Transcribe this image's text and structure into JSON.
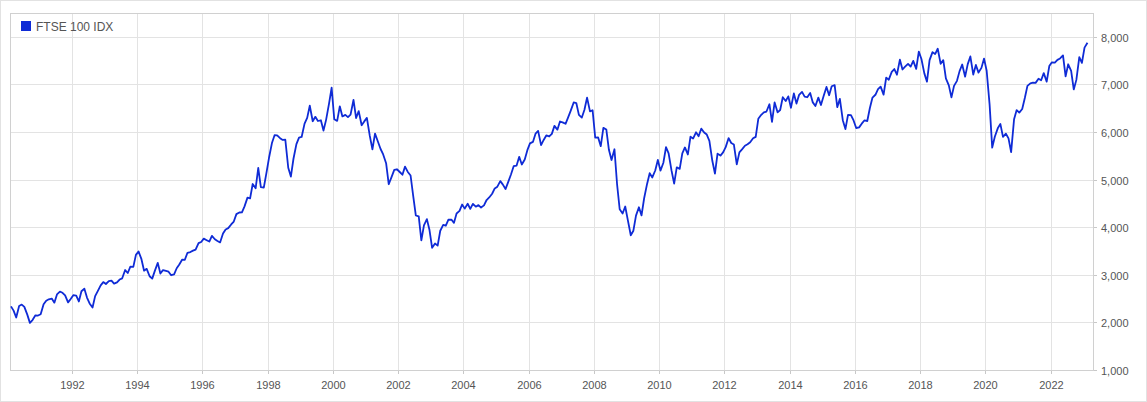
{
  "chart_data": {
    "type": "line",
    "x": [
      1990.13,
      1990.21,
      1990.29,
      1990.38,
      1990.46,
      1990.54,
      1990.63,
      1990.71,
      1990.79,
      1990.88,
      1990.96,
      1991.04,
      1991.13,
      1991.21,
      1991.29,
      1991.38,
      1991.46,
      1991.54,
      1991.63,
      1991.71,
      1991.79,
      1991.88,
      1991.96,
      1992.04,
      1992.13,
      1992.21,
      1992.29,
      1992.38,
      1992.46,
      1992.54,
      1992.63,
      1992.71,
      1992.79,
      1992.88,
      1992.96,
      1993.04,
      1993.13,
      1993.21,
      1993.29,
      1993.38,
      1993.46,
      1993.54,
      1993.63,
      1993.71,
      1993.79,
      1993.88,
      1993.96,
      1994.04,
      1994.13,
      1994.21,
      1994.29,
      1994.38,
      1994.46,
      1994.54,
      1994.63,
      1994.71,
      1994.79,
      1994.88,
      1994.96,
      1995.04,
      1995.13,
      1995.21,
      1995.29,
      1995.38,
      1995.46,
      1995.54,
      1995.63,
      1995.71,
      1995.79,
      1995.88,
      1995.96,
      1996.04,
      1996.13,
      1996.21,
      1996.29,
      1996.38,
      1996.46,
      1996.54,
      1996.63,
      1996.71,
      1996.79,
      1996.88,
      1996.96,
      1997.04,
      1997.13,
      1997.21,
      1997.29,
      1997.38,
      1997.46,
      1997.54,
      1997.63,
      1997.71,
      1997.79,
      1997.88,
      1997.96,
      1998.04,
      1998.13,
      1998.21,
      1998.29,
      1998.38,
      1998.46,
      1998.54,
      1998.63,
      1998.71,
      1998.79,
      1998.88,
      1998.96,
      1999.04,
      1999.13,
      1999.21,
      1999.29,
      1999.38,
      1999.46,
      1999.54,
      1999.63,
      1999.71,
      1999.79,
      1999.88,
      1999.96,
      2000.04,
      2000.13,
      2000.21,
      2000.29,
      2000.38,
      2000.46,
      2000.54,
      2000.63,
      2000.71,
      2000.79,
      2000.88,
      2000.96,
      2001.04,
      2001.13,
      2001.21,
      2001.29,
      2001.38,
      2001.46,
      2001.54,
      2001.63,
      2001.71,
      2001.79,
      2001.88,
      2001.96,
      2002.04,
      2002.13,
      2002.21,
      2002.29,
      2002.38,
      2002.46,
      2002.54,
      2002.63,
      2002.71,
      2002.79,
      2002.88,
      2002.96,
      2003.04,
      2003.13,
      2003.21,
      2003.29,
      2003.38,
      2003.46,
      2003.54,
      2003.63,
      2003.71,
      2003.79,
      2003.88,
      2003.96,
      2004.04,
      2004.13,
      2004.21,
      2004.29,
      2004.38,
      2004.46,
      2004.54,
      2004.63,
      2004.71,
      2004.79,
      2004.88,
      2004.96,
      2005.04,
      2005.13,
      2005.21,
      2005.29,
      2005.38,
      2005.46,
      2005.54,
      2005.63,
      2005.71,
      2005.79,
      2005.88,
      2005.96,
      2006.04,
      2006.13,
      2006.21,
      2006.29,
      2006.38,
      2006.46,
      2006.54,
      2006.63,
      2006.71,
      2006.79,
      2006.88,
      2006.96,
      2007.04,
      2007.13,
      2007.21,
      2007.29,
      2007.38,
      2007.46,
      2007.54,
      2007.63,
      2007.71,
      2007.79,
      2007.88,
      2007.96,
      2008.04,
      2008.13,
      2008.21,
      2008.29,
      2008.38,
      2008.46,
      2008.54,
      2008.63,
      2008.71,
      2008.79,
      2008.88,
      2008.96,
      2009.04,
      2009.13,
      2009.21,
      2009.29,
      2009.38,
      2009.46,
      2009.54,
      2009.63,
      2009.71,
      2009.79,
      2009.88,
      2009.96,
      2010.04,
      2010.13,
      2010.21,
      2010.29,
      2010.38,
      2010.46,
      2010.54,
      2010.63,
      2010.71,
      2010.79,
      2010.88,
      2010.96,
      2011.04,
      2011.13,
      2011.21,
      2011.29,
      2011.38,
      2011.46,
      2011.54,
      2011.63,
      2011.71,
      2011.79,
      2011.88,
      2011.96,
      2012.04,
      2012.13,
      2012.21,
      2012.29,
      2012.38,
      2012.46,
      2012.54,
      2012.63,
      2012.71,
      2012.79,
      2012.88,
      2012.96,
      2013.04,
      2013.13,
      2013.21,
      2013.29,
      2013.38,
      2013.46,
      2013.54,
      2013.63,
      2013.71,
      2013.79,
      2013.88,
      2013.96,
      2014.04,
      2014.13,
      2014.21,
      2014.29,
      2014.38,
      2014.46,
      2014.54,
      2014.63,
      2014.71,
      2014.79,
      2014.88,
      2014.96,
      2015.04,
      2015.13,
      2015.21,
      2015.29,
      2015.38,
      2015.46,
      2015.54,
      2015.63,
      2015.71,
      2015.79,
      2015.88,
      2015.96,
      2016.04,
      2016.13,
      2016.21,
      2016.29,
      2016.38,
      2016.46,
      2016.54,
      2016.63,
      2016.71,
      2016.79,
      2016.88,
      2016.96,
      2017.04,
      2017.13,
      2017.21,
      2017.29,
      2017.38,
      2017.46,
      2017.54,
      2017.63,
      2017.71,
      2017.79,
      2017.88,
      2017.96,
      2018.04,
      2018.13,
      2018.21,
      2018.29,
      2018.38,
      2018.46,
      2018.54,
      2018.63,
      2018.71,
      2018.79,
      2018.88,
      2018.96,
      2019.04,
      2019.13,
      2019.21,
      2019.29,
      2019.38,
      2019.46,
      2019.54,
      2019.63,
      2019.71,
      2019.79,
      2019.88,
      2019.96,
      2020.04,
      2020.13,
      2020.21,
      2020.29,
      2020.38,
      2020.46,
      2020.54,
      2020.63,
      2020.71,
      2020.79,
      2020.88,
      2020.96,
      2021.04,
      2021.13,
      2021.21,
      2021.29,
      2021.38,
      2021.46,
      2021.54,
      2021.63,
      2021.71,
      2021.79,
      2021.88,
      2021.96,
      2022.04,
      2022.13,
      2022.21,
      2022.29,
      2022.38,
      2022.46,
      2022.54,
      2022.63,
      2022.71,
      2022.79,
      2022.88,
      2022.96,
      2023.04,
      2023.13
    ],
    "series": [
      {
        "name": "FTSE 100 IDX",
        "color": "#0f2bd6",
        "values": [
          2337,
          2247,
          2103,
          2345,
          2375,
          2326,
          2163,
          1990,
          2050,
          2149,
          2144,
          2170,
          2380,
          2456,
          2486,
          2500,
          2415,
          2588,
          2645,
          2622,
          2566,
          2420,
          2493,
          2571,
          2562,
          2440,
          2654,
          2708,
          2521,
          2399,
          2313,
          2553,
          2658,
          2778,
          2847,
          2807,
          2868,
          2878,
          2813,
          2840,
          2900,
          2926,
          3100,
          3038,
          3171,
          3166,
          3418,
          3491,
          3328,
          3086,
          3125,
          2970,
          2919,
          3082,
          3251,
          3027,
          3097,
          3081,
          3066,
          2991,
          3009,
          3138,
          3216,
          3320,
          3315,
          3463,
          3478,
          3508,
          3530,
          3664,
          3689,
          3760,
          3727,
          3699,
          3818,
          3747,
          3711,
          3680,
          3867,
          3953,
          3980,
          4058,
          4119,
          4275,
          4309,
          4313,
          4437,
          4621,
          4604,
          4907,
          4817,
          5244,
          4842,
          4831,
          5136,
          5458,
          5767,
          5932,
          5928,
          5870,
          5833,
          5837,
          5249,
          5064,
          5438,
          5744,
          5883,
          5896,
          6175,
          6296,
          6552,
          6226,
          6319,
          6231,
          6246,
          6030,
          6255,
          6597,
          6930,
          6269,
          6233,
          6540,
          6327,
          6360,
          6313,
          6365,
          6673,
          6294,
          6438,
          6142,
          6223,
          6297,
          5918,
          5634,
          5967,
          5796,
          5643,
          5529,
          5345,
          4903,
          5040,
          5204,
          5217,
          5165,
          5102,
          5272,
          5166,
          5086,
          4656,
          4246,
          4227,
          3722,
          4039,
          4170,
          3940,
          3567,
          3656,
          3613,
          3926,
          4048,
          4031,
          4157,
          4161,
          4091,
          4288,
          4342,
          4477,
          4390,
          4492,
          4386,
          4489,
          4431,
          4464,
          4413,
          4459,
          4571,
          4625,
          4703,
          4814,
          4852,
          4968,
          4894,
          4801,
          4964,
          5113,
          5282,
          5296,
          5478,
          5317,
          5423,
          5619,
          5760,
          5792,
          5965,
          6023,
          5724,
          5833,
          5928,
          5906,
          5961,
          6129,
          6049,
          6221,
          6203,
          6172,
          6308,
          6449,
          6621,
          6608,
          6360,
          6303,
          6467,
          6722,
          6433,
          6457,
          5880,
          5884,
          5702,
          6087,
          6053,
          5626,
          5412,
          5637,
          4902,
          4377,
          4288,
          4434,
          4150,
          3830,
          3926,
          4244,
          4418,
          4249,
          4608,
          4909,
          5134,
          5045,
          5191,
          5413,
          5189,
          5355,
          5680,
          5553,
          5188,
          4917,
          5258,
          5225,
          5549,
          5675,
          5528,
          5900,
          5863,
          5994,
          5909,
          6070,
          5990,
          5946,
          5815,
          5395,
          5128,
          5544,
          5505,
          5572,
          5682,
          5872,
          5768,
          5738,
          5321,
          5571,
          5635,
          5711,
          5742,
          5783,
          5867,
          5898,
          6277,
          6361,
          6412,
          6430,
          6583,
          6215,
          6621,
          6413,
          6462,
          6731,
          6651,
          6749,
          6510,
          6810,
          6598,
          6780,
          6844,
          6744,
          6730,
          6820,
          6622,
          6546,
          6723,
          6566,
          6749,
          6947,
          6773,
          6961,
          6984,
          6521,
          6696,
          6248,
          6062,
          6361,
          6356,
          6242,
          6084,
          6097,
          6175,
          6242,
          6231,
          6504,
          6724,
          6782,
          6899,
          6954,
          6784,
          7143,
          7099,
          7263,
          7323,
          7204,
          7520,
          7313,
          7372,
          7431,
          7373,
          7493,
          7327,
          7688,
          7534,
          7232,
          7057,
          7509,
          7678,
          7637,
          7749,
          7432,
          7510,
          7128,
          6980,
          6728,
          6969,
          7075,
          7279,
          7418,
          7162,
          7426,
          7587,
          7207,
          7408,
          7248,
          7347,
          7542,
          7286,
          6581,
          5672,
          5901,
          6077,
          6170,
          5898,
          5964,
          5866,
          5577,
          6266,
          6461,
          6407,
          6484,
          6714,
          6970,
          7023,
          7037,
          7032,
          7120,
          7086,
          7238,
          7059,
          7385,
          7464,
          7458,
          7516,
          7545,
          7608,
          7169,
          7423,
          7284,
          6894,
          7095,
          7573,
          7452,
          7772,
          7876
        ]
      }
    ],
    "xlim": [
      1990.1,
      2023.3
    ],
    "xticks": [
      1992,
      1994,
      1996,
      1998,
      2000,
      2002,
      2004,
      2006,
      2008,
      2010,
      2012,
      2014,
      2016,
      2018,
      2020,
      2022
    ],
    "ylim": [
      1000,
      8500
    ],
    "yticks": [
      {
        "value": 1000,
        "label": "1,000"
      },
      {
        "value": 2000,
        "label": "2,000"
      },
      {
        "value": 3000,
        "label": "3,000"
      },
      {
        "value": 4000,
        "label": "4,000"
      },
      {
        "value": 5000,
        "label": "5,000"
      },
      {
        "value": 6000,
        "label": "6,000"
      },
      {
        "value": 7000,
        "label": "7,000"
      },
      {
        "value": 8000,
        "label": "8,000"
      }
    ],
    "grid": true,
    "legend": "top-left"
  }
}
